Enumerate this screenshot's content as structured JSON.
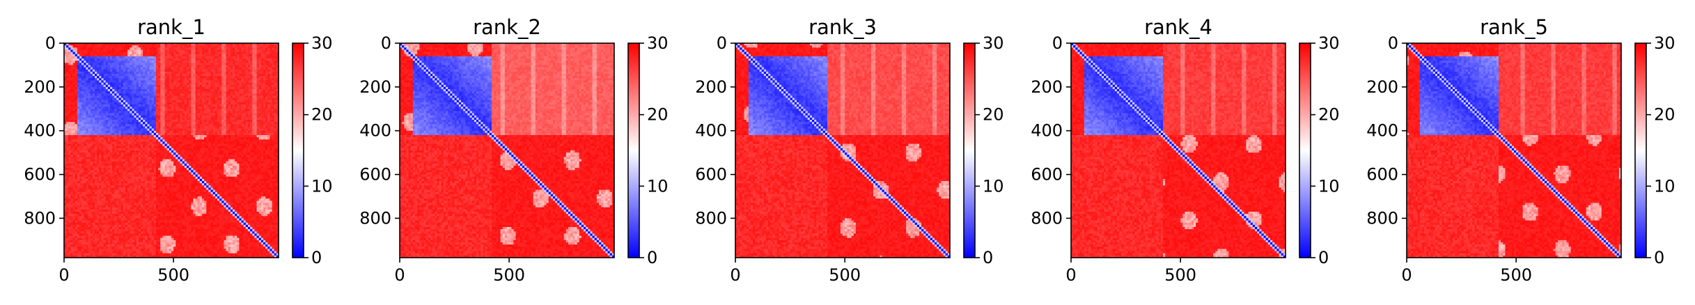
{
  "chart_data": {
    "type": "heatmap",
    "panels": [
      {
        "title": "rank_1",
        "variant": 1
      },
      {
        "title": "rank_2",
        "variant": 2
      },
      {
        "title": "rank_3",
        "variant": 3
      },
      {
        "title": "rank_4",
        "variant": 4
      },
      {
        "title": "rank_5",
        "variant": 5
      }
    ],
    "matrix_size": 980,
    "x_ticks": [
      0,
      500
    ],
    "x_tick_labels": [
      "0",
      "500"
    ],
    "y_ticks": [
      0,
      200,
      400,
      600,
      800
    ],
    "y_tick_labels": [
      "0",
      "200",
      "400",
      "600",
      "800"
    ],
    "xlim": [
      0,
      980
    ],
    "ylim": [
      980,
      0
    ],
    "colorbar": {
      "range": [
        0,
        30
      ],
      "ticks": [
        0,
        10,
        20,
        30
      ],
      "tick_labels": [
        "0",
        "10",
        "20",
        "30"
      ],
      "colormap": "bwr",
      "low_color": "#0000ff",
      "mid_color": "#ffffff",
      "high_color": "#ff0000"
    },
    "structure": {
      "low_value_block": [
        60,
        420
      ],
      "block_value_approx": 3,
      "diagonal_value": 0,
      "background_value_approx": 29,
      "upper_right_region_value_approx": 25
    }
  }
}
